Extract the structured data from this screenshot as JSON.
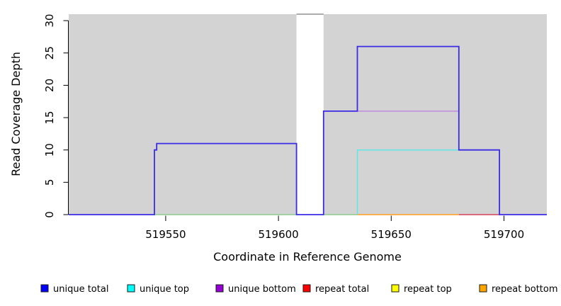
{
  "chart": {
    "type": "step-line",
    "title": "",
    "xlabel": "Coordinate in Reference Genome",
    "ylabel": "Read Coverage Depth",
    "xlim": [
      519507,
      519719
    ],
    "ylim": [
      0,
      31
    ],
    "xticks": [
      519550,
      519600,
      519650,
      519700
    ],
    "yticks": [
      0,
      5,
      10,
      15,
      20,
      25,
      30
    ],
    "grid": false,
    "plot_bg": "#D3D3D3",
    "figure_bg": "#FFFFFF",
    "masked_region": {
      "start": 519608,
      "end": 519620,
      "fill": "#FFFFFF",
      "clip_line_color": "#909090",
      "clip_value": 31
    },
    "series": [
      {
        "name": "unique total",
        "color": "#0000FF",
        "steps": [
          [
            519507,
            0
          ],
          [
            519545,
            10
          ],
          [
            519546,
            11
          ],
          [
            519608,
            0
          ],
          [
            519620,
            16
          ],
          [
            519635,
            26
          ],
          [
            519680,
            10
          ],
          [
            519698,
            0
          ],
          [
            519719,
            0
          ]
        ]
      },
      {
        "name": "unique top",
        "color": "#00FFFF",
        "steps": [
          [
            519507,
            0
          ],
          [
            519635,
            10
          ],
          [
            519680,
            0
          ],
          [
            519719,
            0
          ]
        ]
      },
      {
        "name": "unique bottom",
        "color": "#9400D3",
        "steps": [
          [
            519507,
            0
          ],
          [
            519620,
            16
          ],
          [
            519680,
            0
          ],
          [
            519719,
            0
          ]
        ]
      },
      {
        "name": "repeat total",
        "color": "#FF0000",
        "steps": [
          [
            519507,
            0
          ],
          [
            519719,
            0
          ]
        ]
      },
      {
        "name": "repeat top",
        "color": "#FFFF00",
        "steps": [
          [
            519507,
            0
          ],
          [
            519719,
            0
          ]
        ]
      },
      {
        "name": "repeat bottom",
        "color": "#FFA500",
        "steps": [
          [
            519507,
            0
          ],
          [
            519719,
            0
          ]
        ]
      }
    ],
    "visible_paths": [
      {
        "name": "masked-clip-line",
        "color": "#909090",
        "width": 1.5,
        "points": [
          [
            519608,
            31
          ],
          [
            519620,
            31
          ]
        ]
      },
      {
        "name": "top-strand-zero-left",
        "color": "#8CC98C",
        "width": 1.4,
        "points": [
          [
            519545,
            0
          ],
          [
            519608,
            0
          ]
        ]
      },
      {
        "name": "top-strand-zero-mid",
        "color": "#8CC98C",
        "width": 1.4,
        "points": [
          [
            519620,
            0
          ],
          [
            519635,
            0
          ]
        ]
      },
      {
        "name": "repeat-bottom-zero",
        "color": "#FF9C1E",
        "width": 1.6,
        "points": [
          [
            519635,
            0
          ],
          [
            519680,
            0
          ]
        ]
      },
      {
        "name": "repeat-total-zero",
        "color": "#D34058",
        "width": 1.6,
        "points": [
          [
            519680,
            0
          ],
          [
            519698,
            0
          ]
        ]
      },
      {
        "name": "unique-bottom-line",
        "color": "#BD84DE",
        "width": 1.4,
        "points": [
          [
            519620,
            16
          ],
          [
            519680,
            16
          ]
        ]
      },
      {
        "name": "unique-top-line",
        "color": "#5FE6E6",
        "width": 1.5,
        "points": [
          [
            519635,
            0
          ],
          [
            519635,
            10
          ],
          [
            519680,
            10
          ]
        ]
      },
      {
        "name": "unique-total-line",
        "color": "#3B2BE5",
        "width": 1.8,
        "points": [
          [
            519507,
            0
          ],
          [
            519545,
            0
          ],
          [
            519545,
            10
          ],
          [
            519546,
            10
          ],
          [
            519546,
            11
          ],
          [
            519608,
            11
          ],
          [
            519608,
            0
          ],
          [
            519620,
            0
          ],
          [
            519620,
            16
          ],
          [
            519635,
            16
          ],
          [
            519635,
            26
          ],
          [
            519680,
            26
          ],
          [
            519680,
            10
          ],
          [
            519698,
            10
          ],
          [
            519698,
            0
          ],
          [
            519719,
            0
          ]
        ]
      }
    ]
  },
  "legend": {
    "items": [
      {
        "label": "unique total",
        "color": "#0000FF"
      },
      {
        "label": "unique top",
        "color": "#00FFFF"
      },
      {
        "label": "unique bottom",
        "color": "#9400D3"
      },
      {
        "label": "repeat total",
        "color": "#FF0000"
      },
      {
        "label": "repeat top",
        "color": "#FFFF00"
      },
      {
        "label": "repeat bottom",
        "color": "#FFA500"
      }
    ]
  }
}
